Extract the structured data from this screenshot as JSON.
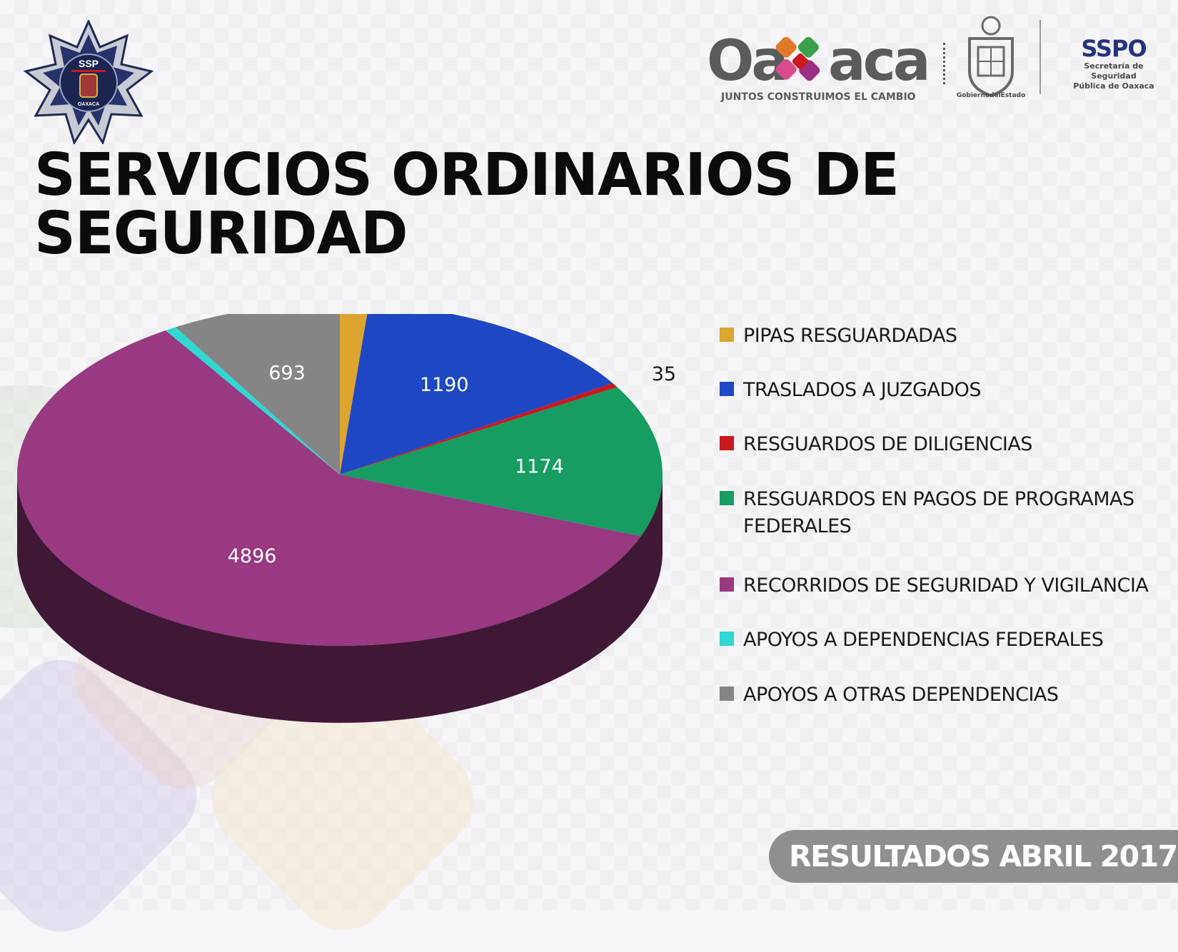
{
  "header": {
    "title": "SERVICIOS ORDINARIOS DE SEGURIDAD",
    "badge": {
      "top_text": "SSP",
      "bottom_text": "OAXACA"
    },
    "logo_oaxaca": {
      "word": "Oaxaca",
      "tagline": "JUNTOS CONSTRUIMOS EL CAMBIO"
    },
    "logo_gobierno": {
      "caption": "GobiernodelEstado"
    },
    "logo_sspo": {
      "acronym": "SSPO",
      "line1": "Secretaría de Seguridad",
      "line2": "Pública de Oaxaca"
    }
  },
  "footer": {
    "label": "RESULTADOS ABRIL 2017"
  },
  "chart_data": {
    "type": "pie",
    "style": "3d",
    "title": "SERVICIOS ORDINARIOS DE SEGURIDAD",
    "legend_position": "right",
    "slices": [
      {
        "label": "PIPAS RESGUARDADAS",
        "value": 117,
        "color": "#dba52f"
      },
      {
        "label": "TRASLADOS A JUZGADOS",
        "value": 1190,
        "color": "#1e47c4"
      },
      {
        "label": "RESGUARDOS DE DILIGENCIAS",
        "value": 35,
        "color": "#c8191f"
      },
      {
        "label": "RESGUARDOS EN PAGOS DE PROGRAMAS FEDERALES",
        "value": 1174,
        "color": "#179c62"
      },
      {
        "label": "RECORRIDOS DE SEGURIDAD Y VIGILANCIA",
        "value": 4896,
        "color": "#983982"
      },
      {
        "label": "APOYOS A DEPENDENCIAS FEDERALES",
        "value": 47,
        "color": "#2fd8d2"
      },
      {
        "label": "APOYOS A OTRAS DEPENDENCIAS",
        "value": 693,
        "color": "#858585"
      }
    ]
  }
}
